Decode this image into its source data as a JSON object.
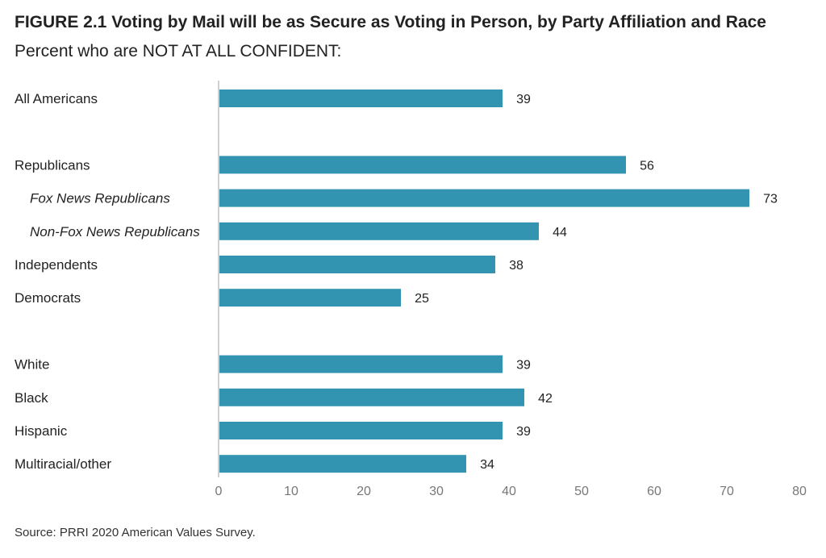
{
  "title": "FIGURE 2.1 Voting by Mail will be as Secure as Voting in Person, by Party Affiliation and Race",
  "subtitle": "Percent who are NOT AT ALL CONFIDENT:",
  "source": "Source: PRRI 2020 American Values Survey.",
  "colors": {
    "bar": "#3394b2",
    "axis": "#d0d0d0",
    "tick_text": "#777777",
    "label_text": "#222222"
  },
  "chart_data": {
    "type": "bar",
    "orientation": "horizontal",
    "categories": [
      "All Americans",
      "",
      "Republicans",
      "Fox News Republicans",
      "Non-Fox News Republicans",
      "Independents",
      "Democrats",
      "",
      "White",
      "Black",
      "Hispanic",
      "Multiracial/other"
    ],
    "italic_categories": [
      "Fox News Republicans",
      "Non-Fox News Republicans"
    ],
    "values": [
      39,
      null,
      56,
      73,
      44,
      38,
      25,
      null,
      39,
      42,
      39,
      34
    ],
    "xlim": [
      0,
      80
    ],
    "xticks": [
      0,
      10,
      20,
      30,
      40,
      50,
      60,
      70,
      80
    ],
    "grid": false,
    "data_labels": true
  }
}
